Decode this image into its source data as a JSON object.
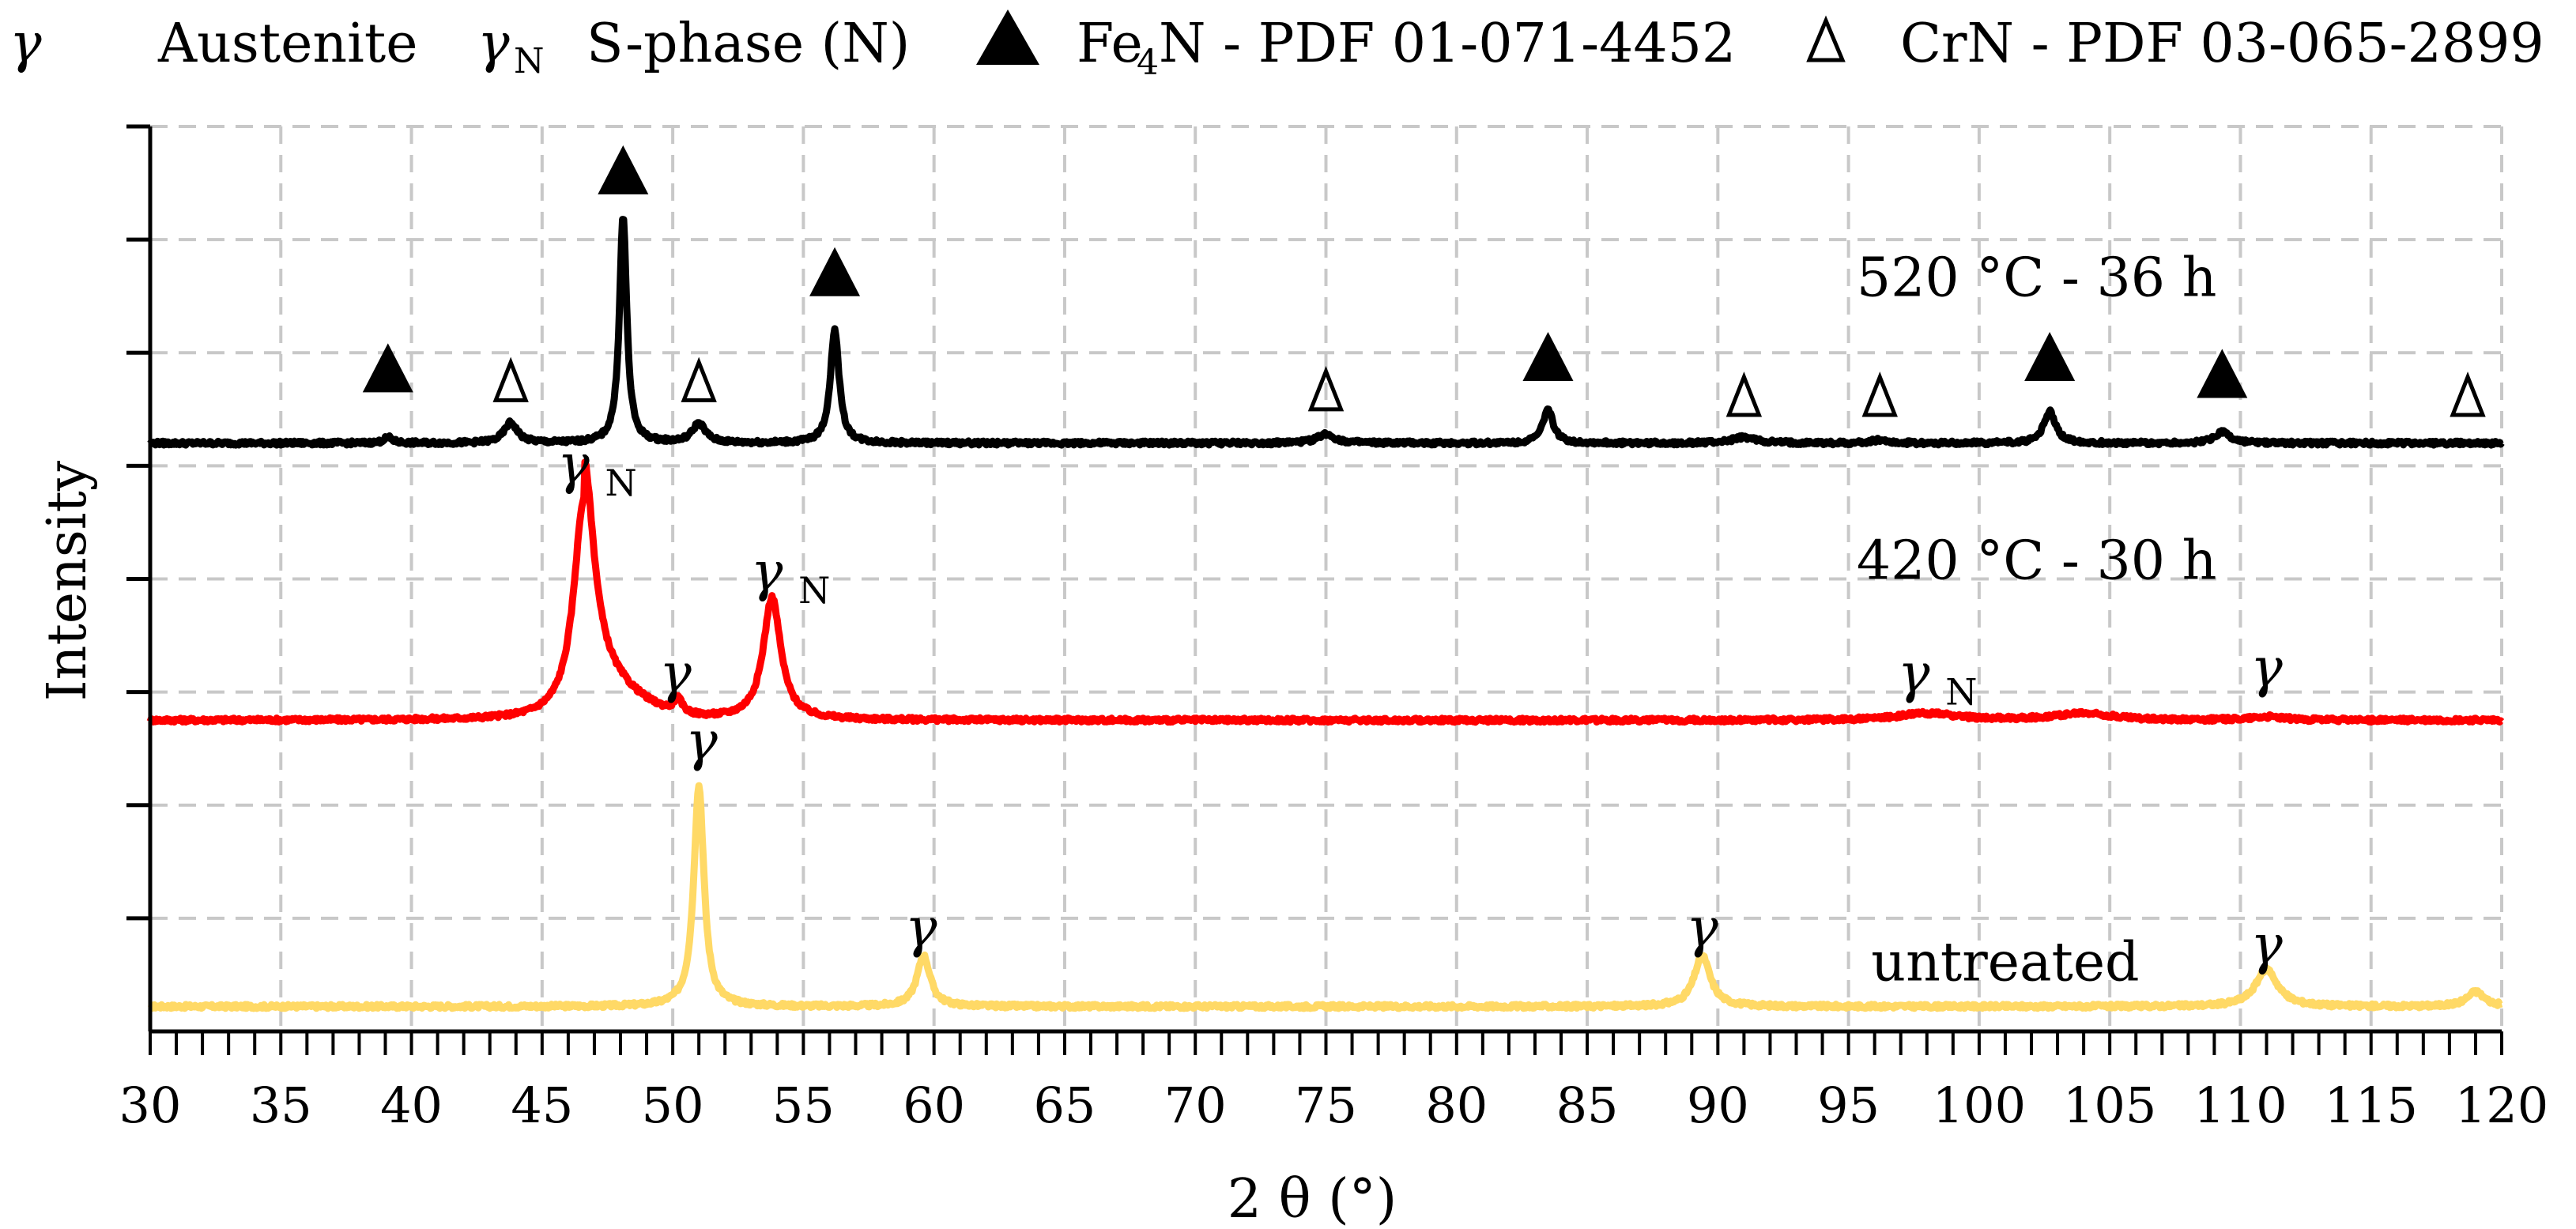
{
  "legend": {
    "gamma_symbol": "γ",
    "gamma_label": "Austenite",
    "gammaN_symbol": "γ",
    "gammaN_sub": "N",
    "gammaN_label": "S-phase (N)",
    "fe4n_label_pre": "Fe",
    "fe4n_label_sub": "4",
    "fe4n_label_post": "N - PDF 01-071-4452",
    "crn_label": "CrN - PDF 03-065-2899"
  },
  "chart_data": {
    "type": "line",
    "xlabel": "2 θ (°)",
    "ylabel": "Intensity",
    "xlim": [
      30,
      120
    ],
    "xticks": [
      30,
      35,
      40,
      45,
      50,
      55,
      60,
      65,
      70,
      75,
      80,
      85,
      90,
      95,
      100,
      105,
      110,
      115,
      120
    ],
    "ylim": [
      0,
      8
    ],
    "yticks": [
      1,
      2,
      3,
      4,
      5,
      6,
      7,
      8
    ],
    "grid": true,
    "legend_position": "top",
    "colors": {
      "untreated": "#FFD966",
      "n420": "#FF0000",
      "n520": "#000000"
    },
    "series": [
      {
        "name": "untreated",
        "baseline": 0.22,
        "peaks": [
          {
            "x": 51.0,
            "h": 1.95,
            "w": 0.35
          },
          {
            "x": 59.6,
            "h": 0.45,
            "w": 0.45
          },
          {
            "x": 89.4,
            "h": 0.45,
            "w": 0.55
          },
          {
            "x": 111.0,
            "h": 0.33,
            "w": 0.75
          },
          {
            "x": 119.0,
            "h": 0.13,
            "w": 0.6
          }
        ]
      },
      {
        "name": "420 °C - 30 h",
        "baseline": 2.75,
        "peaks": [
          {
            "x": 46.6,
            "h": 1.95,
            "w": 0.7,
            "tail": 0.7,
            "tailw": 2.4
          },
          {
            "x": 50.2,
            "h": 0.12,
            "w": 0.3
          },
          {
            "x": 53.8,
            "h": 1.08,
            "w": 0.6
          },
          {
            "x": 98.0,
            "h": 0.06,
            "w": 2.0
          },
          {
            "x": 104.0,
            "h": 0.06,
            "w": 2.0
          },
          {
            "x": 111.0,
            "h": 0.03,
            "w": 1.2
          }
        ]
      },
      {
        "name": "520 °C - 36 h",
        "baseline": 5.2,
        "peaks": [
          {
            "x": 39.1,
            "h": 0.05,
            "w": 0.3
          },
          {
            "x": 43.8,
            "h": 0.18,
            "w": 0.45
          },
          {
            "x": 48.1,
            "h": 2.0,
            "w": 0.25
          },
          {
            "x": 51.0,
            "h": 0.17,
            "w": 0.45
          },
          {
            "x": 56.2,
            "h": 1.0,
            "w": 0.3
          },
          {
            "x": 75.0,
            "h": 0.08,
            "w": 0.6
          },
          {
            "x": 83.5,
            "h": 0.3,
            "w": 0.35
          },
          {
            "x": 91.0,
            "h": 0.05,
            "w": 0.8
          },
          {
            "x": 96.2,
            "h": 0.03,
            "w": 0.5
          },
          {
            "x": 102.7,
            "h": 0.28,
            "w": 0.4
          },
          {
            "x": 109.3,
            "h": 0.1,
            "w": 0.5
          }
        ]
      }
    ],
    "curve_labels": [
      {
        "text": "520 °C - 36 h",
        "x": 102.2,
        "y": 6.5
      },
      {
        "text": "420 °C - 30 h",
        "x": 102.2,
        "y": 4.0
      },
      {
        "text": "untreated",
        "x": 101.0,
        "y": 0.45
      }
    ],
    "peak_markers": [
      {
        "type": "fe4n",
        "x": 39.1,
        "y": 5.65
      },
      {
        "type": "crn",
        "x": 43.8,
        "y": 5.58
      },
      {
        "type": "fe4n",
        "x": 48.1,
        "y": 7.4
      },
      {
        "type": "crn",
        "x": 51.0,
        "y": 5.58
      },
      {
        "type": "fe4n",
        "x": 56.2,
        "y": 6.5
      },
      {
        "type": "crn",
        "x": 75.0,
        "y": 5.5
      },
      {
        "type": "fe4n",
        "x": 83.5,
        "y": 5.75
      },
      {
        "type": "crn",
        "x": 91.0,
        "y": 5.45
      },
      {
        "type": "crn",
        "x": 96.2,
        "y": 5.45
      },
      {
        "type": "fe4n",
        "x": 102.7,
        "y": 5.75
      },
      {
        "type": "fe4n",
        "x": 109.3,
        "y": 5.6
      },
      {
        "type": "crn",
        "x": 118.7,
        "y": 5.45
      }
    ],
    "peak_labels": [
      {
        "sym": "γ",
        "sub": "N",
        "x": 46.2,
        "y": 4.85
      },
      {
        "sym": "γ",
        "sub": "",
        "x": 50.1,
        "y": 3.0
      },
      {
        "sym": "γ",
        "sub": "N",
        "x": 53.6,
        "y": 3.9
      },
      {
        "sym": "γ",
        "sub": "N",
        "x": 97.5,
        "y": 3.0
      },
      {
        "sym": "γ",
        "sub": "",
        "x": 111.0,
        "y": 3.05
      },
      {
        "sym": "γ",
        "sub": "",
        "x": 51.1,
        "y": 2.4
      },
      {
        "sym": "γ",
        "sub": "",
        "x": 59.5,
        "y": 0.75
      },
      {
        "sym": "γ",
        "sub": "",
        "x": 89.4,
        "y": 0.75
      },
      {
        "sym": "γ",
        "sub": "",
        "x": 111.0,
        "y": 0.6
      }
    ]
  }
}
